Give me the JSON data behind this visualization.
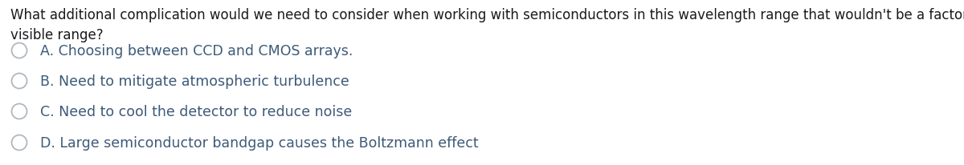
{
  "background_color": "#ffffff",
  "question_line1": "What additional complication would we need to consider when working with semiconductors in this wavelength range that wouldn't be a factor if we were working in the",
  "question_line2": "visible range?",
  "options": [
    "A. Choosing between CCD and CMOS arrays.",
    "B. Need to mitigate atmospheric turbulence",
    "C. Need to cool the detector to reduce noise",
    "D. Large semiconductor bandgap causes the Boltzmann effect"
  ],
  "text_color": "#3c5a78",
  "question_color": "#1a1a1a",
  "circle_edge_color": "#b0b8c0",
  "font_size_question": 12.0,
  "font_size_options": 12.5,
  "fig_width": 12.0,
  "fig_height": 2.07,
  "dpi": 100
}
